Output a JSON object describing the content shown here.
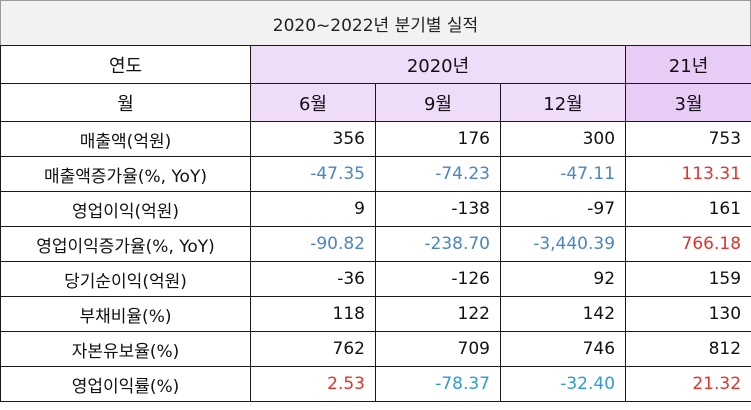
{
  "title": "2020~2022년 분기별 실적",
  "header": {
    "year_label": "연도",
    "year_2020": "2020년",
    "year_21": "21년",
    "month_label": "월",
    "months": [
      "6월",
      "9월",
      "12월",
      "3월"
    ]
  },
  "rows": [
    {
      "label": "매출액(억원)",
      "values": [
        "356",
        "176",
        "300",
        "753"
      ]
    },
    {
      "label": "매출액증가율(%, YoY)",
      "values": [
        "-47.35",
        "-74.23",
        "-47.11",
        "113.31"
      ]
    },
    {
      "label": "영업이익(억원)",
      "values": [
        "9",
        "-138",
        "-97",
        "161"
      ]
    },
    {
      "label": "영업이익증가율(%, YoY)",
      "values": [
        "-90.82",
        "-238.70",
        "-3,440.39",
        "766.18"
      ]
    },
    {
      "label": "당기순이익(억원)",
      "values": [
        "-36",
        "-126",
        "92",
        "159"
      ]
    },
    {
      "label": "부채비율(%)",
      "values": [
        "118",
        "122",
        "142",
        "130"
      ]
    },
    {
      "label": "자본유보율(%)",
      "values": [
        "762",
        "709",
        "746",
        "812"
      ]
    },
    {
      "label": "영업이익률(%)",
      "values": [
        "2.53",
        "-78.37",
        "-32.40",
        "21.32"
      ]
    }
  ],
  "colors": {
    "header_purple": "#efdcf9",
    "header_purple_dark": "#e7cdf6",
    "negative_blue": "#4a86c5",
    "positive_red": "#e5322d",
    "title_bg": "#f2f2f2"
  }
}
